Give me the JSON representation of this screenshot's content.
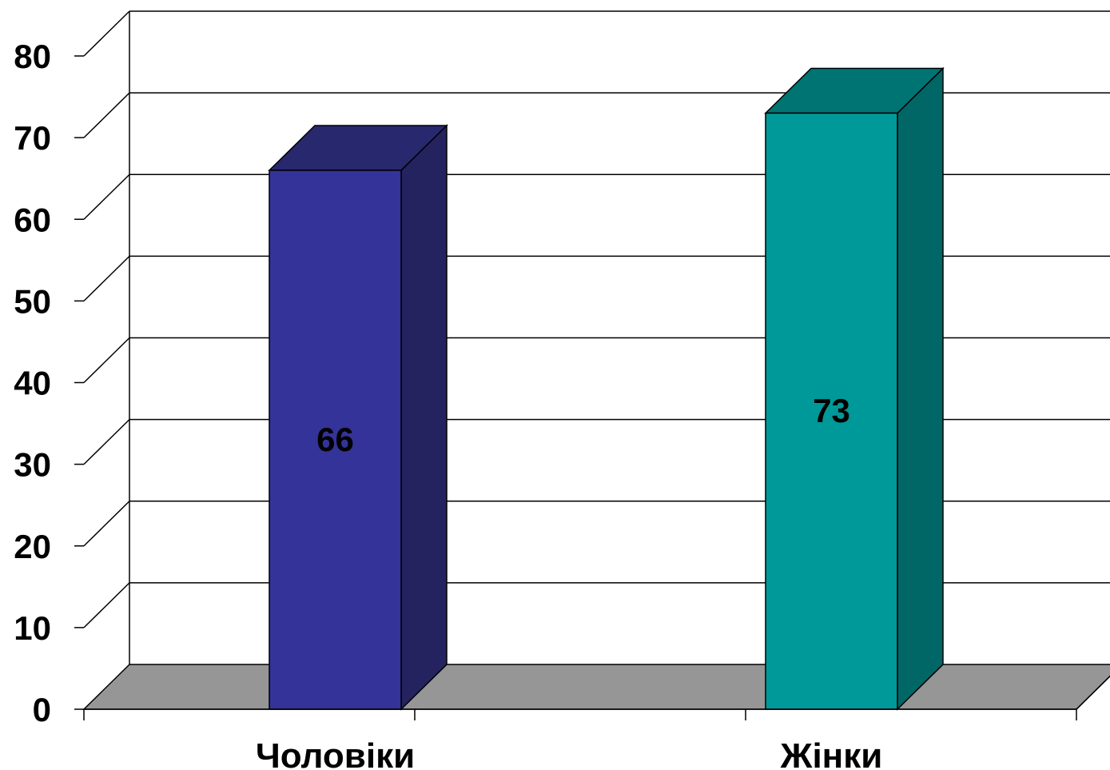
{
  "chart_data": {
    "type": "bar",
    "three_d": true,
    "categories": [
      "Чоловіки",
      "Жінки"
    ],
    "values": [
      66,
      73
    ],
    "data_labels": [
      "66",
      "73"
    ],
    "ylim": [
      0,
      80
    ],
    "yticks": [
      0,
      10,
      20,
      30,
      40,
      50,
      60,
      70,
      80
    ],
    "grid": true,
    "legend": "none",
    "colors": {
      "bars": [
        {
          "front": "#333399",
          "side": "#24235f",
          "top": "#28286e"
        },
        {
          "front": "#009999",
          "side": "#006666",
          "top": "#007373"
        }
      ],
      "floor": "#969696",
      "grid": "#000000",
      "background": "#ffffff"
    }
  }
}
